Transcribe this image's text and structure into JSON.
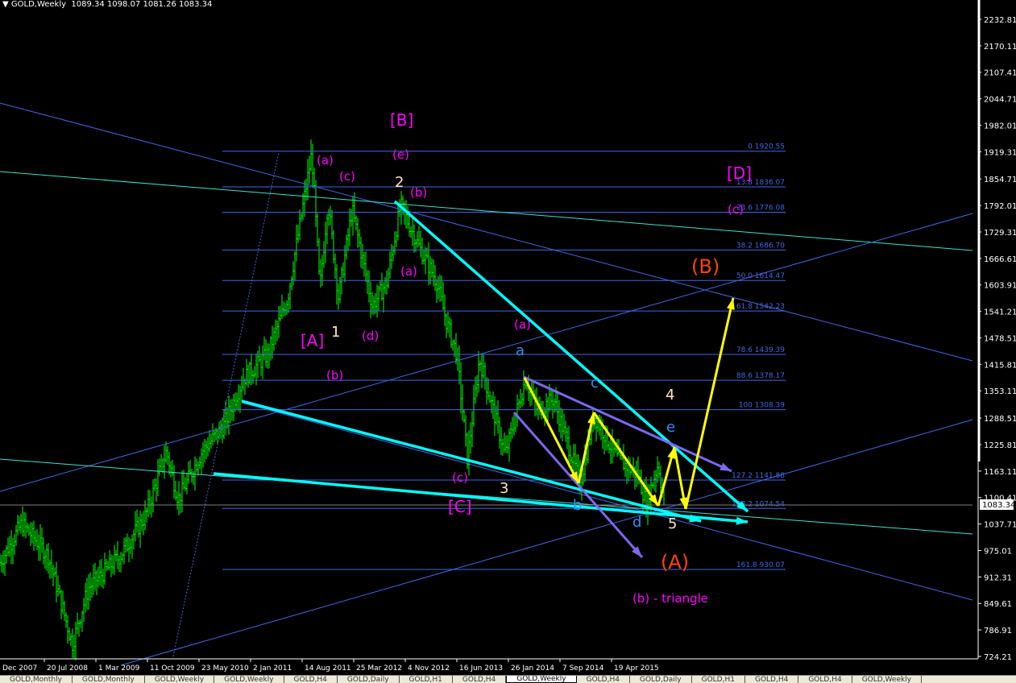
{
  "header": {
    "symbol": "GOLD,Weekly",
    "ohlc": "1089.34 1098.07 1081.26 1083.34"
  },
  "colors": {
    "bars": "#00ff00",
    "fib": "#4169e1",
    "trend_thin": "#4169e1",
    "teal": "#40e0d0",
    "cyan": "#00ffff",
    "purple": "#7b68ee",
    "yellow": "#ffff00",
    "magenta": "#ff00ff",
    "wave_blue": "#2f8ff0",
    "wave_white": "#ffe4c4",
    "wave_orange": "#ff4500"
  },
  "chart_data": {
    "type": "ohlc",
    "symbol": "GOLD",
    "timeframe": "Weekly",
    "current_price": "1083.34",
    "y_ticks": [
      "2232.81",
      "2170.11",
      "2107.41",
      "2044.71",
      "1982.01",
      "1919.31",
      "1854.71",
      "1792.01",
      "1729.31",
      "1666.61",
      "1603.91",
      "1541.21",
      "1478.51",
      "1415.81",
      "1353.11",
      "1288.51",
      "1225.81",
      "1163.11",
      "1100.41",
      "1037.71",
      "975.01",
      "912.31",
      "849.61",
      "786.91",
      "724.21"
    ],
    "x_ticks": [
      "Dec 2007",
      "20 Jul 2008",
      "1 Mar 2009",
      "11 Oct 2009",
      "23 May 2010",
      "2 Jan 2011",
      "14 Aug 2011",
      "25 Mar 2012",
      "4 Nov 2012",
      "16 Jun 2013",
      "26 Jan 2014",
      "7 Sep 2014",
      "19 Apr 2015"
    ],
    "price_path": [
      [
        "2008-01-06",
        943
      ],
      [
        "2008-04-13",
        1039
      ],
      [
        "2008-08-06",
        963
      ],
      [
        "2008-11-19",
        753
      ],
      [
        "2009-01-27",
        886
      ],
      [
        "2009-06-16",
        963
      ],
      [
        "2009-10-03",
        1058
      ],
      [
        "2010-01-01",
        1210
      ],
      [
        "2010-02-22",
        1096
      ],
      [
        "2010-06-06",
        1210
      ],
      [
        "2010-09-05",
        1268
      ],
      [
        "2010-12-02",
        1382
      ],
      [
        "2011-03-17",
        1439
      ],
      [
        "2011-06-12",
        1573
      ],
      [
        "2011-09-25",
        1917
      ],
      [
        "2011-10-30",
        1592
      ],
      [
        "2011-12-04",
        1802
      ],
      [
        "2012-01-19",
        1573
      ],
      [
        "2012-03-18",
        1783
      ],
      [
        "2012-06-14",
        1554
      ],
      [
        "2012-08-16",
        1611
      ],
      [
        "2012-10-14",
        1792
      ],
      [
        "2013-01-10",
        1687
      ],
      [
        "2013-03-21",
        1611
      ],
      [
        "2013-05-02",
        1516
      ],
      [
        "2013-06-16",
        1439
      ],
      [
        "2013-08-01",
        1191
      ],
      [
        "2013-09-22",
        1430
      ],
      [
        "2014-01-12",
        1201
      ],
      [
        "2014-04-10",
        1382
      ],
      [
        "2014-06-01",
        1306
      ],
      [
        "2014-08-10",
        1334
      ],
      [
        "2014-12-04",
        1134
      ],
      [
        "2015-02-01",
        1296
      ],
      [
        "2015-05-17",
        1191
      ],
      [
        "2015-08-13",
        1153
      ],
      [
        "2015-09-17",
        1086
      ],
      [
        "2015-11-08",
        1181
      ],
      [
        "2015-12-03",
        1083
      ]
    ],
    "fibonacci": [
      {
        "level": "0",
        "price": "1920.55"
      },
      {
        "level": "13.8",
        "price": "1836.07"
      },
      {
        "level": "23.6",
        "price": "1776.08"
      },
      {
        "level": "38.2",
        "price": "1686.70"
      },
      {
        "level": "50.0",
        "price": "1614.47"
      },
      {
        "level": "61.8",
        "price": "1542.23"
      },
      {
        "level": "78.6",
        "price": "1439.39"
      },
      {
        "level": "88.6",
        "price": "1378.17"
      },
      {
        "level": "100",
        "price": "1308.39"
      },
      {
        "level": "127.2",
        "price": "1141.88"
      },
      {
        "level": "138.2",
        "price": "1074.54"
      },
      {
        "level": "161.8",
        "price": "930.07"
      }
    ]
  },
  "waves": {
    "B_big": "[B]",
    "a1": "(a)",
    "e1": "(e)",
    "c1": "(c)",
    "two": "2",
    "b1": "(b)",
    "a2": "(a)",
    "one": "1",
    "d1": "(d)",
    "A_big": "[A]",
    "b2": "(b)",
    "a3": "(a)",
    "a_small": "a",
    "c_small": "c",
    "four": "4",
    "e_small": "e",
    "c2": "(c)",
    "three": "3",
    "C_big": "[C]",
    "b_small": "b",
    "d_small": "d",
    "five": "5",
    "A_paren": "(A)",
    "b_triangle": "(b) - triangle",
    "D_big": "[D]",
    "c3": "(c)",
    "B_paren": "(B)"
  },
  "tabs": [
    "GOLD,Monthly",
    "GOLD,Monthly",
    "GOLD,Weekly",
    "GOLD,Weekly",
    "GOLD,H4",
    "GOLD,Daily",
    "GOLD,H1",
    "GOLD,H4",
    "GOLD,Weekly",
    "GOLD,H4",
    "GOLD,Daily",
    "GOLD,H1",
    "GOLD,H4",
    "GOLD,H4",
    "GOLD,Weekly"
  ],
  "active_tab": 8
}
